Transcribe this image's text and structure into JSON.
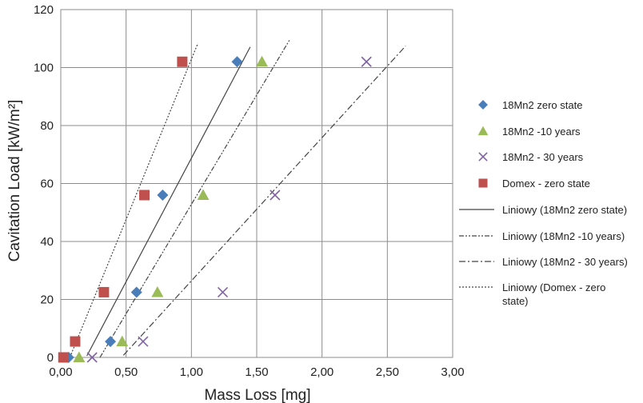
{
  "chart_data": {
    "type": "scatter",
    "title": "",
    "xlabel": "Mass Loss [mg]",
    "ylabel": "Cavitation Load [kW/m²]",
    "xlim": [
      0,
      3
    ],
    "ylim": [
      0,
      120
    ],
    "x_ticks": [
      "0,00",
      "0,50",
      "1,00",
      "1,50",
      "2,00",
      "2,50",
      "3,00"
    ],
    "y_ticks": [
      "0",
      "20",
      "40",
      "60",
      "80",
      "100",
      "120"
    ],
    "grid": true,
    "legend_position": "right",
    "series": [
      {
        "name": "18Mn2 zero state",
        "marker": "diamond",
        "color": "#4a7ebb",
        "points": [
          [
            0.06,
            0
          ],
          [
            0.38,
            5.5
          ],
          [
            0.58,
            22.5
          ],
          [
            0.78,
            56
          ],
          [
            1.35,
            102
          ]
        ]
      },
      {
        "name": "18Mn2 -10 years",
        "marker": "triangle",
        "color": "#9bbb59",
        "points": [
          [
            0.14,
            0
          ],
          [
            0.47,
            5.5
          ],
          [
            0.74,
            22.5
          ],
          [
            1.09,
            56
          ],
          [
            1.54,
            102
          ]
        ]
      },
      {
        "name": "18Mn2 - 30 years",
        "marker": "x",
        "color": "#8064a2",
        "points": [
          [
            0.24,
            0
          ],
          [
            0.63,
            5.5
          ],
          [
            1.24,
            22.5
          ],
          [
            1.64,
            56
          ],
          [
            2.34,
            102
          ]
        ]
      },
      {
        "name": "Domex - zero state",
        "marker": "square",
        "color": "#c0504d",
        "points": [
          [
            0.02,
            0
          ],
          [
            0.11,
            5.5
          ],
          [
            0.33,
            22.5
          ],
          [
            0.64,
            56
          ],
          [
            0.93,
            102
          ]
        ]
      }
    ],
    "trendlines": [
      {
        "name": "Liniowy (18Mn2 zero state)",
        "dash": "solid",
        "x0": 0.2,
        "x1": 1.45
      },
      {
        "name": "Liniowy (18Mn2 -10 years)",
        "dash": "dashdotdot",
        "x0": 0.3,
        "x1": 1.75
      },
      {
        "name": "Liniowy (18Mn2 - 30 years)",
        "dash": "dashdot",
        "x0": 0.48,
        "x1": 2.64
      },
      {
        "name": "Liniowy (Domex - zero state)",
        "dash": "dotted",
        "x0": 0.07,
        "x1": 1.05
      }
    ],
    "trendline_color": "#444444"
  },
  "legend": {
    "entries": [
      {
        "label": "18Mn2 zero state",
        "lines": [
          "18Mn2 zero state"
        ]
      },
      {
        "label": "18Mn2 -10 years",
        "lines": [
          "18Mn2 -10 years"
        ]
      },
      {
        "label": "18Mn2 - 30 years",
        "lines": [
          "18Mn2 - 30 years"
        ]
      },
      {
        "label": "Domex - zero state",
        "lines": [
          "Domex - zero state"
        ]
      },
      {
        "label": "Liniowy (18Mn2 zero state)",
        "lines": [
          "Liniowy (18Mn2 zero state)"
        ]
      },
      {
        "label": "Liniowy (18Mn2 -10 years)",
        "lines": [
          "Liniowy (18Mn2 -10 years)"
        ]
      },
      {
        "label": "Liniowy (18Mn2 - 30 years)",
        "lines": [
          "Liniowy (18Mn2 - 30 years)"
        ]
      },
      {
        "label": "Liniowy (Domex - zero state)",
        "lines": [
          "Liniowy (Domex - zero",
          "state)"
        ]
      }
    ]
  }
}
